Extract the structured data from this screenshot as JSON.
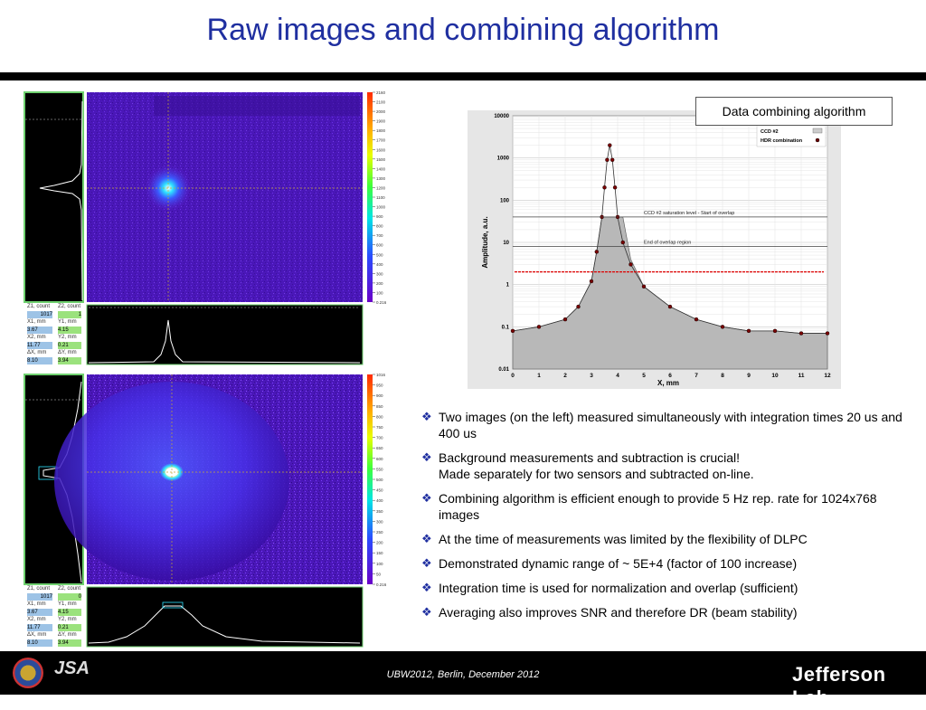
{
  "slide": {
    "title": "Raw images and combining algorithm",
    "footer": "UBW2012, Berlin, December 2012",
    "logo_jlab_text": "Jefferson Lab",
    "logo_jsa_text": "JSA"
  },
  "callout": {
    "text": "Data combining algorithm"
  },
  "bullets": [
    {
      "lines": [
        "Two images (on the left) measured simultaneously with integration times 20 us and 400 us"
      ]
    },
    {
      "lines": [
        "Background measurements and subtraction is crucial!",
        "Made separately for two sensors and subtracted on-line."
      ]
    },
    {
      "lines": [
        "Combining algorithm is efficient enough to provide 5 Hz rep. rate for 1024x768 images"
      ]
    },
    {
      "lines": [
        "At the time of measurements was limited by the flexibility of DLPC"
      ]
    },
    {
      "lines": [
        "Demonstrated dynamic range of ~ 5E+4 (factor of 100 increase)"
      ]
    },
    {
      "lines": [
        "Integration time is used for normalization and overlap (sufficient)"
      ]
    },
    {
      "lines": [
        "Averaging also improves SNR and therefore DR (beam stability)"
      ]
    }
  ],
  "panels": [
    {
      "colorbar_ticks": [
        "2160",
        "2100",
        "2000",
        "1900",
        "1800",
        "1700",
        "1600",
        "1500",
        "1400",
        "1300",
        "1200",
        "1100",
        "1000",
        "900",
        "800",
        "700",
        "600",
        "500",
        "400",
        "300",
        "200",
        "100",
        "0.216"
      ],
      "readout": {
        "z1_label": "Z1, count",
        "z1_val": "1017",
        "z2_label": "Z2, count",
        "z2_val": "1",
        "x1_label": "X1, mm",
        "x1_val": "3.67",
        "y1_label": "Y1, mm",
        "y1_val": "4.15",
        "x2_label": "X2, mm",
        "x2_val": "11.77",
        "y2_label": "Y2, mm",
        "y2_val": "0.21",
        "dx_label": "ΔX, mm",
        "dx_val": "8.10",
        "dy_label": "ΔY, mm",
        "dy_val": "3.94"
      }
    },
    {
      "colorbar_ticks": [
        "1016",
        "950",
        "900",
        "850",
        "800",
        "750",
        "700",
        "650",
        "600",
        "550",
        "500",
        "450",
        "400",
        "350",
        "300",
        "250",
        "200",
        "150",
        "100",
        "50",
        "0.216"
      ],
      "readout": {
        "z1_label": "Z1, count",
        "z1_val": "1017",
        "z2_label": "Z2, count",
        "z2_val": "0",
        "x1_label": "X1, mm",
        "x1_val": "3.67",
        "y1_label": "Y1, mm",
        "y1_val": "4.15",
        "x2_label": "X2, mm",
        "x2_val": "11.77",
        "y2_label": "Y2, mm",
        "y2_val": "0.21",
        "dx_label": "ΔX, mm",
        "dx_val": "8.10",
        "dy_label": "ΔY, mm",
        "dy_val": "3.94"
      }
    }
  ],
  "chart_data": {
    "type": "scatter",
    "title": "",
    "xlabel": "X, mm",
    "ylabel": "Amplitude, a.u.",
    "xlim": [
      0,
      12
    ],
    "ylim": [
      0.01,
      10000
    ],
    "yscale": "log",
    "x_ticks": [
      "0",
      "1",
      "2",
      "3",
      "4",
      "5",
      "6",
      "7",
      "8",
      "9",
      "10",
      "11",
      "12"
    ],
    "y_ticks": [
      "10000",
      "1000",
      "100",
      "10",
      "1",
      "0.1",
      "0.01"
    ],
    "legend": {
      "placement": "top-right",
      "entries": [
        "CCD #2",
        "HDR combination"
      ]
    },
    "annotations": [
      {
        "text": "CCD #2 saturation level - Start of overlap",
        "y": 40
      },
      {
        "text": "End of overlap region",
        "y": 8
      }
    ],
    "series": [
      {
        "name": "CCD #2",
        "x": [
          0,
          1,
          2,
          2.5,
          3,
          3.2,
          3.4,
          3.6,
          3.7,
          3.8,
          4.0,
          4.2,
          4.5,
          5,
          6,
          7,
          8,
          9,
          10,
          11,
          12
        ],
        "y": [
          0.08,
          0.1,
          0.15,
          0.3,
          1.2,
          6,
          40,
          40,
          40,
          40,
          40,
          40,
          4,
          0.9,
          0.3,
          0.15,
          0.1,
          0.08,
          0.08,
          0.07,
          0.07
        ]
      },
      {
        "name": "HDR combination",
        "x": [
          0,
          1,
          2,
          2.5,
          3,
          3.2,
          3.4,
          3.5,
          3.6,
          3.7,
          3.8,
          3.9,
          4.0,
          4.2,
          4.5,
          5,
          6,
          7,
          8,
          9,
          10,
          11,
          12
        ],
        "y": [
          0.08,
          0.1,
          0.15,
          0.3,
          1.2,
          6,
          40,
          200,
          900,
          2000,
          900,
          200,
          40,
          10,
          3,
          0.9,
          0.3,
          0.15,
          0.1,
          0.08,
          0.08,
          0.07,
          0.07
        ]
      }
    ]
  }
}
